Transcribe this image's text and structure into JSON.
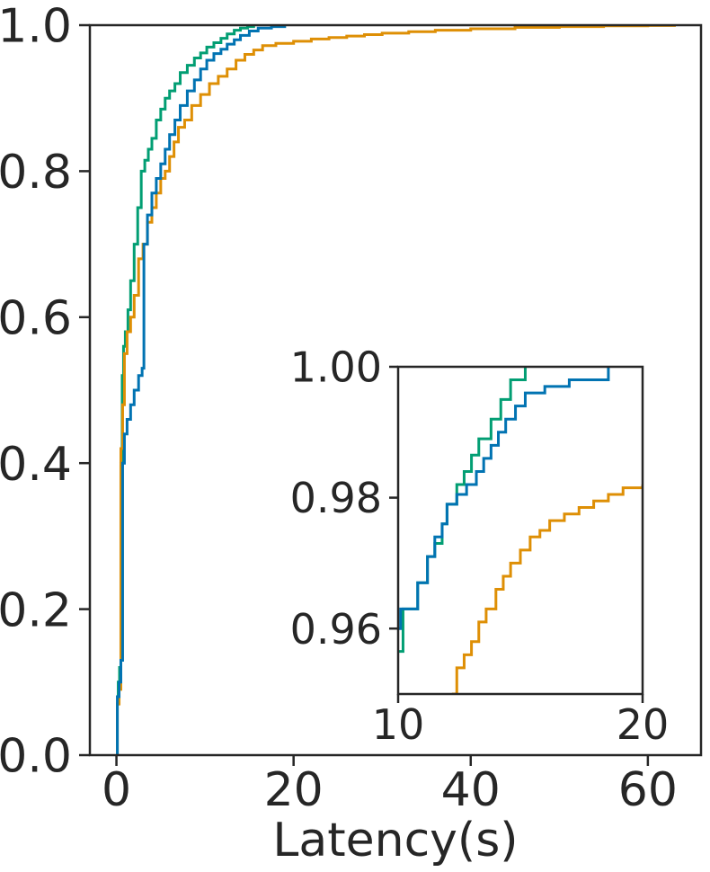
{
  "chart_data": [
    {
      "type": "line",
      "step": true,
      "xlabel": "Latency(s)",
      "ylabel": "",
      "xlim": [
        -3,
        66
      ],
      "ylim": [
        0,
        1
      ],
      "xticks": [
        0,
        20,
        40,
        60
      ],
      "xtick_labels": [
        "0",
        "20",
        "40",
        "60"
      ],
      "yticks": [
        0,
        0.2,
        0.4,
        0.6,
        0.8,
        1.0
      ],
      "ytick_labels": [
        "0.0",
        "0.2",
        "0.4",
        "0.6",
        "0.8",
        "1.0"
      ],
      "grid": false,
      "legend": "none",
      "series": [
        {
          "color": "#029e73",
          "x": [
            0,
            0.1,
            0.2,
            0.35,
            0.5,
            0.65,
            0.8,
            1.0,
            1.3,
            1.6,
            2.0,
            2.4,
            2.8,
            3.2,
            3.6,
            4.0,
            4.5,
            5.0,
            5.5,
            6.0,
            6.6,
            7.2,
            8.0,
            8.8,
            9.5,
            10.2,
            11.0,
            11.8,
            12.5,
            13.3,
            14.0,
            14.8,
            15.5
          ],
          "y": [
            0,
            0.07,
            0.1,
            0.12,
            0.4,
            0.52,
            0.56,
            0.58,
            0.61,
            0.65,
            0.7,
            0.75,
            0.8,
            0.815,
            0.83,
            0.845,
            0.87,
            0.885,
            0.9,
            0.91,
            0.92,
            0.935,
            0.945,
            0.955,
            0.962,
            0.97,
            0.976,
            0.982,
            0.988,
            0.993,
            0.996,
            0.998,
            1.0
          ]
        },
        {
          "color": "#de8f05",
          "x": [
            0,
            0.1,
            0.3,
            0.5,
            0.7,
            0.9,
            1.2,
            1.6,
            2.0,
            2.5,
            3.0,
            3.5,
            4.0,
            4.5,
            5.0,
            5.5,
            6.0,
            6.5,
            7.0,
            7.7,
            8.5,
            9.5,
            10.5,
            11.5,
            12.5,
            13.5,
            14.5,
            15.5,
            16.5,
            18.0,
            20.0,
            22.0,
            24.0,
            26.0,
            28.0,
            30.0,
            33.0,
            36.0,
            40.0,
            45.0,
            50.0,
            55.0,
            60.0,
            63.0
          ],
          "y": [
            0,
            0.07,
            0.09,
            0.42,
            0.48,
            0.55,
            0.58,
            0.6,
            0.63,
            0.68,
            0.7,
            0.73,
            0.75,
            0.77,
            0.79,
            0.8,
            0.82,
            0.84,
            0.86,
            0.87,
            0.89,
            0.905,
            0.92,
            0.93,
            0.94,
            0.952,
            0.96,
            0.966,
            0.972,
            0.975,
            0.978,
            0.981,
            0.983,
            0.985,
            0.987,
            0.989,
            0.991,
            0.993,
            0.995,
            0.997,
            0.998,
            0.999,
            0.9995,
            1.0
          ]
        },
        {
          "color": "#0173b2",
          "x": [
            0,
            0.1,
            0.3,
            0.5,
            0.7,
            0.9,
            1.2,
            1.6,
            2.0,
            2.5,
            2.9,
            3.1,
            3.5,
            4.0,
            4.5,
            5.0,
            5.5,
            6.0,
            6.6,
            7.2,
            8.0,
            8.8,
            9.5,
            10.2,
            11.0,
            11.8,
            12.5,
            13.3,
            14.0,
            15.0,
            16.0,
            17.5,
            19.0
          ],
          "y": [
            0,
            0.08,
            0.1,
            0.13,
            0.4,
            0.44,
            0.46,
            0.48,
            0.5,
            0.52,
            0.53,
            0.7,
            0.74,
            0.77,
            0.79,
            0.81,
            0.83,
            0.85,
            0.87,
            0.89,
            0.91,
            0.925,
            0.94,
            0.952,
            0.961,
            0.967,
            0.974,
            0.98,
            0.986,
            0.992,
            0.996,
            0.998,
            1.0
          ]
        }
      ]
    },
    {
      "type": "line",
      "step": true,
      "inset": true,
      "xlabel": "",
      "ylabel": "",
      "xlim": [
        10,
        20
      ],
      "ylim": [
        0.95,
        1.0
      ],
      "xticks": [
        10,
        20
      ],
      "xtick_labels": [
        "10",
        "20"
      ],
      "yticks": [
        0.96,
        0.98,
        1.0
      ],
      "ytick_labels": [
        "0.96",
        "0.98",
        "1.00"
      ],
      "grid": false,
      "legend": "none",
      "series": [
        {
          "color": "#029e73",
          "x": [
            10.0,
            10.2,
            10.8,
            11.2,
            11.5,
            11.8,
            12.0,
            12.4,
            12.7,
            13.0,
            13.3,
            13.8,
            14.2,
            14.6,
            15.2
          ],
          "y": [
            0.9565,
            0.963,
            0.967,
            0.971,
            0.973,
            0.976,
            0.979,
            0.982,
            0.984,
            0.9865,
            0.989,
            0.992,
            0.995,
            0.998,
            1.0
          ]
        },
        {
          "color": "#de8f05",
          "x": [
            12.2,
            12.4,
            12.7,
            13.0,
            13.3,
            13.6,
            14.0,
            14.3,
            14.6,
            15.0,
            15.4,
            15.8,
            16.2,
            16.8,
            17.4,
            18.0,
            18.6,
            19.2,
            20.0
          ],
          "y": [
            0.95,
            0.954,
            0.956,
            0.958,
            0.961,
            0.963,
            0.966,
            0.968,
            0.97,
            0.972,
            0.974,
            0.975,
            0.9765,
            0.9775,
            0.9785,
            0.9795,
            0.9805,
            0.9815,
            0.982
          ]
        },
        {
          "color": "#0173b2",
          "x": [
            10.0,
            10.1,
            10.8,
            11.2,
            11.5,
            11.8,
            12.0,
            12.4,
            12.8,
            13.2,
            13.5,
            13.8,
            14.1,
            14.4,
            14.8,
            15.2,
            16.0,
            17.0,
            18.0,
            18.6
          ],
          "y": [
            0.96,
            0.963,
            0.967,
            0.971,
            0.974,
            0.976,
            0.979,
            0.9805,
            0.982,
            0.984,
            0.986,
            0.988,
            0.99,
            0.992,
            0.994,
            0.996,
            0.997,
            0.998,
            0.998,
            1.0
          ]
        }
      ]
    }
  ]
}
